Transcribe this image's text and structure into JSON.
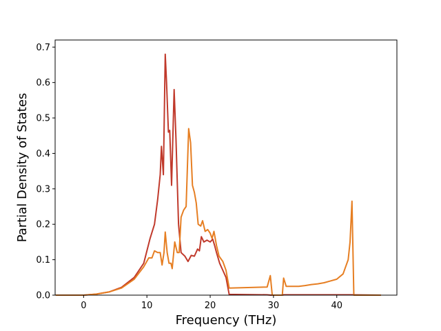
{
  "chart_data": {
    "type": "line",
    "title": "",
    "xlabel": "Frequency (THz)",
    "ylabel": "Partial Density of States",
    "xlim": [
      -4.5,
      49.5
    ],
    "ylim": [
      0,
      0.72
    ],
    "xticks": [
      0,
      10,
      20,
      30,
      40
    ],
    "yticks": [
      0.0,
      0.1,
      0.2,
      0.3,
      0.4,
      0.5,
      0.6,
      0.7
    ],
    "xtick_labels": [
      "0",
      "10",
      "20",
      "30",
      "40"
    ],
    "ytick_labels": [
      "0.0",
      "0.1",
      "0.2",
      "0.3",
      "0.4",
      "0.5",
      "0.6",
      "0.7"
    ],
    "grid": false,
    "legend": "none",
    "series": [
      {
        "color": "#c0392b",
        "points": [
          [
            -4.4,
            0
          ],
          [
            0,
            0
          ],
          [
            2,
            0.003
          ],
          [
            4,
            0.009
          ],
          [
            6,
            0.022
          ],
          [
            8,
            0.05
          ],
          [
            9.5,
            0.09
          ],
          [
            10.5,
            0.16
          ],
          [
            11.2,
            0.2
          ],
          [
            11.7,
            0.27
          ],
          [
            12.1,
            0.34
          ],
          [
            12.3,
            0.42
          ],
          [
            12.6,
            0.34
          ],
          [
            12.9,
            0.68
          ],
          [
            13.1,
            0.6
          ],
          [
            13.4,
            0.46
          ],
          [
            13.6,
            0.465
          ],
          [
            13.9,
            0.31
          ],
          [
            14.3,
            0.58
          ],
          [
            14.6,
            0.44
          ],
          [
            15.0,
            0.2
          ],
          [
            15.4,
            0.12
          ],
          [
            16.0,
            0.11
          ],
          [
            16.5,
            0.095
          ],
          [
            17.0,
            0.112
          ],
          [
            17.5,
            0.11
          ],
          [
            18.0,
            0.13
          ],
          [
            18.3,
            0.125
          ],
          [
            18.6,
            0.165
          ],
          [
            19.0,
            0.15
          ],
          [
            19.5,
            0.155
          ],
          [
            20.0,
            0.15
          ],
          [
            20.4,
            0.158
          ],
          [
            20.7,
            0.14
          ],
          [
            21.0,
            0.12
          ],
          [
            21.5,
            0.09
          ],
          [
            22.0,
            0.07
          ],
          [
            22.5,
            0.05
          ],
          [
            23.0,
            0.002
          ],
          [
            24.0,
            0.002
          ],
          [
            29.0,
            0.001
          ],
          [
            29.6,
            0.0
          ],
          [
            31.4,
            0.0
          ],
          [
            31.6,
            0.001
          ],
          [
            42.2,
            0.001
          ],
          [
            47,
            0
          ]
        ]
      },
      {
        "color": "#e67e22",
        "points": [
          [
            -4.4,
            0
          ],
          [
            0,
            0
          ],
          [
            2,
            0.003
          ],
          [
            4,
            0.009
          ],
          [
            6,
            0.02
          ],
          [
            8,
            0.045
          ],
          [
            9.5,
            0.08
          ],
          [
            10.3,
            0.105
          ],
          [
            10.8,
            0.105
          ],
          [
            11.2,
            0.125
          ],
          [
            11.7,
            0.12
          ],
          [
            12.1,
            0.12
          ],
          [
            12.4,
            0.085
          ],
          [
            12.7,
            0.12
          ],
          [
            12.9,
            0.178
          ],
          [
            13.2,
            0.12
          ],
          [
            13.5,
            0.09
          ],
          [
            13.8,
            0.09
          ],
          [
            14.0,
            0.075
          ],
          [
            14.4,
            0.15
          ],
          [
            14.8,
            0.12
          ],
          [
            15.1,
            0.12
          ],
          [
            15.4,
            0.22
          ],
          [
            15.8,
            0.24
          ],
          [
            16.2,
            0.25
          ],
          [
            16.6,
            0.47
          ],
          [
            16.9,
            0.43
          ],
          [
            17.2,
            0.31
          ],
          [
            17.5,
            0.29
          ],
          [
            17.8,
            0.26
          ],
          [
            18.1,
            0.2
          ],
          [
            18.5,
            0.195
          ],
          [
            18.8,
            0.21
          ],
          [
            19.2,
            0.18
          ],
          [
            19.6,
            0.185
          ],
          [
            20.0,
            0.175
          ],
          [
            20.3,
            0.16
          ],
          [
            20.6,
            0.18
          ],
          [
            21.0,
            0.14
          ],
          [
            21.4,
            0.11
          ],
          [
            22.0,
            0.095
          ],
          [
            22.5,
            0.07
          ],
          [
            23.0,
            0.02
          ],
          [
            29.0,
            0.023
          ],
          [
            29.5,
            0.055
          ],
          [
            29.8,
            0.0
          ],
          [
            31.4,
            0.0
          ],
          [
            31.6,
            0.048
          ],
          [
            32.0,
            0.025
          ],
          [
            34,
            0.025
          ],
          [
            35,
            0.027
          ],
          [
            36,
            0.03
          ],
          [
            37,
            0.032
          ],
          [
            38,
            0.035
          ],
          [
            39,
            0.04
          ],
          [
            40,
            0.045
          ],
          [
            41,
            0.06
          ],
          [
            41.8,
            0.1
          ],
          [
            42.1,
            0.15
          ],
          [
            42.4,
            0.265
          ],
          [
            42.7,
            0.0
          ],
          [
            47,
            0.0
          ]
        ]
      }
    ]
  }
}
